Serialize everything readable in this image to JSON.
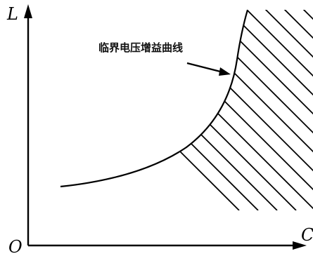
{
  "diagram": {
    "axes": {
      "y_label": "L",
      "x_label": "C",
      "origin_label": "O"
    },
    "curve_label": "临界电压增益曲线",
    "colors": {
      "line": "#000000",
      "background": "#ffffff"
    }
  }
}
